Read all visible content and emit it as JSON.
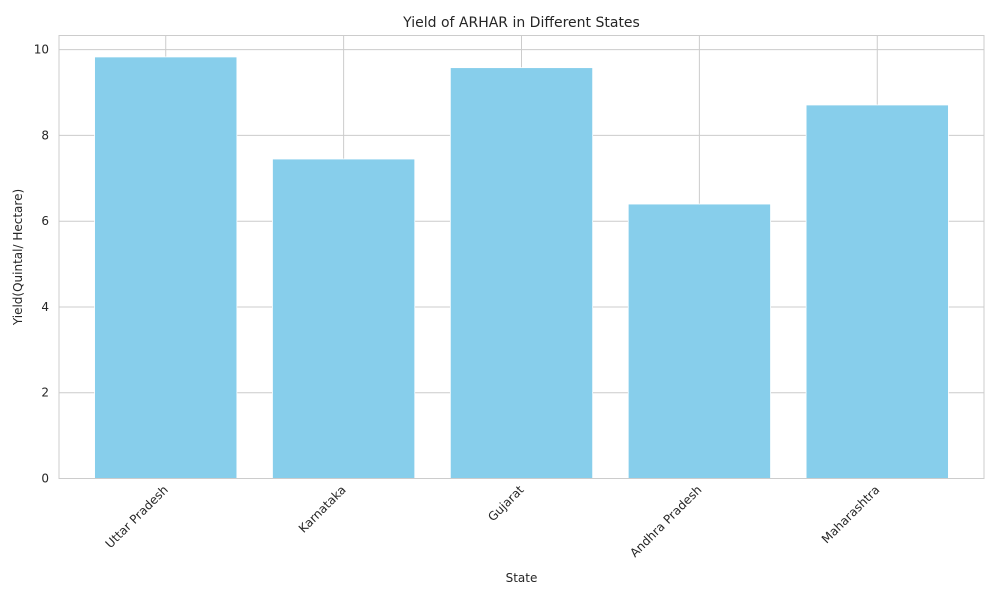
{
  "chart_data": {
    "type": "bar",
    "title": "Yield of ARHAR in Different States",
    "xlabel": "State",
    "ylabel": "Yield(Quintal/ Hectare)",
    "categories": [
      "Uttar Pradesh",
      "Karnataka",
      "Gujarat",
      "Andhra Pradesh",
      "Maharashtra"
    ],
    "values": [
      9.83,
      7.45,
      9.58,
      6.4,
      8.71
    ],
    "ylim": [
      0,
      10.33
    ],
    "yticks": [
      0,
      2,
      4,
      6,
      8,
      10
    ],
    "grid": true,
    "bar_color": "#87CEEB",
    "xtick_rotation": 45
  }
}
